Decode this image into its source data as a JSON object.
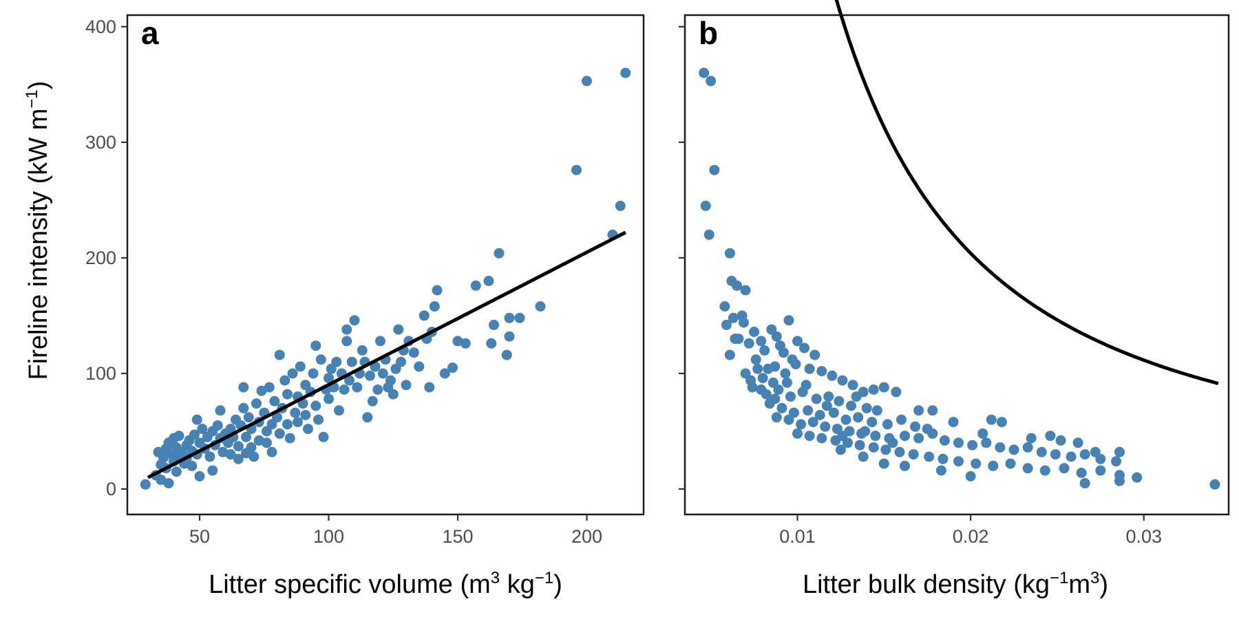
{
  "figure": {
    "y_axis_label": {
      "pre": "Fireline intensity (kW m",
      "sup": "−1",
      "post": ")"
    }
  },
  "chart_data": [
    {
      "type": "scatter",
      "panel": "a",
      "xlabel": {
        "p1": "Litter specific volume (m",
        "s1": "3",
        "p2": " kg",
        "s2": "−1",
        "p3": ")"
      },
      "xlim": [
        22,
        222
      ],
      "ylim": [
        -22,
        410
      ],
      "xticks": [
        50,
        100,
        150,
        200
      ],
      "yticks": [
        0,
        100,
        200,
        300,
        400
      ],
      "point_color": "#4682b4",
      "line_color": "#000000",
      "fit_line": {
        "x": [
          30,
          215
        ],
        "y": [
          10,
          222
        ]
      },
      "points": [
        [
          29,
          4
        ],
        [
          33,
          12
        ],
        [
          34,
          32
        ],
        [
          35,
          21
        ],
        [
          35,
          8
        ],
        [
          36,
          27
        ],
        [
          37,
          35
        ],
        [
          37,
          18
        ],
        [
          38,
          40
        ],
        [
          38,
          5
        ],
        [
          39,
          30
        ],
        [
          40,
          24
        ],
        [
          40,
          44
        ],
        [
          41,
          15
        ],
        [
          41,
          36
        ],
        [
          42,
          28
        ],
        [
          42,
          46
        ],
        [
          43,
          32
        ],
        [
          44,
          22
        ],
        [
          45,
          38
        ],
        [
          45,
          27
        ],
        [
          46,
          42
        ],
        [
          47,
          33
        ],
        [
          47,
          20
        ],
        [
          48,
          47
        ],
        [
          49,
          30
        ],
        [
          49,
          60
        ],
        [
          50,
          11
        ],
        [
          50,
          40
        ],
        [
          51,
          52
        ],
        [
          52,
          35
        ],
        [
          53,
          45
        ],
        [
          54,
          28
        ],
        [
          55,
          50
        ],
        [
          55,
          16
        ],
        [
          56,
          38
        ],
        [
          57,
          55
        ],
        [
          58,
          44
        ],
        [
          58,
          68
        ],
        [
          59,
          32
        ],
        [
          60,
          48
        ],
        [
          61,
          40
        ],
        [
          62,
          52
        ],
        [
          62,
          30
        ],
        [
          63,
          45
        ],
        [
          64,
          60
        ],
        [
          65,
          37
        ],
        [
          65,
          26
        ],
        [
          66,
          55
        ],
        [
          67,
          88
        ],
        [
          67,
          70
        ],
        [
          68,
          45
        ],
        [
          68,
          31
        ],
        [
          69,
          62
        ],
        [
          70,
          52
        ],
        [
          70,
          36
        ],
        [
          71,
          28
        ],
        [
          72,
          74
        ],
        [
          73,
          58
        ],
        [
          73,
          42
        ],
        [
          74,
          85
        ],
        [
          75,
          66
        ],
        [
          76,
          40
        ],
        [
          76,
          50
        ],
        [
          77,
          88
        ],
        [
          78,
          56
        ],
        [
          78,
          32
        ],
        [
          79,
          76
        ],
        [
          80,
          62
        ],
        [
          81,
          48
        ],
        [
          81,
          116
        ],
        [
          82,
          70
        ],
        [
          83,
          94
        ],
        [
          84,
          56
        ],
        [
          84,
          82
        ],
        [
          85,
          44
        ],
        [
          86,
          100
        ],
        [
          87,
          66
        ],
        [
          88,
          80
        ],
        [
          88,
          58
        ],
        [
          89,
          106
        ],
        [
          90,
          74
        ],
        [
          91,
          90
        ],
        [
          91,
          64
        ],
        [
          92,
          52
        ],
        [
          93,
          84
        ],
        [
          94,
          100
        ],
        [
          95,
          72
        ],
        [
          95,
          124
        ],
        [
          96,
          60
        ],
        [
          97,
          112
        ],
        [
          98,
          45
        ],
        [
          99,
          86
        ],
        [
          100,
          96
        ],
        [
          100,
          78
        ],
        [
          101,
          104
        ],
        [
          102,
          88
        ],
        [
          103,
          110
        ],
        [
          104,
          68
        ],
        [
          105,
          100
        ],
        [
          106,
          86
        ],
        [
          107,
          128
        ],
        [
          107,
          138
        ],
        [
          108,
          94
        ],
        [
          109,
          110
        ],
        [
          110,
          146
        ],
        [
          111,
          88
        ],
        [
          112,
          100
        ],
        [
          113,
          120
        ],
        [
          114,
          110
        ],
        [
          115,
          62
        ],
        [
          116,
          98
        ],
        [
          117,
          76
        ],
        [
          118,
          106
        ],
        [
          119,
          86
        ],
        [
          120,
          128
        ],
        [
          121,
          100
        ],
        [
          122,
          112
        ],
        [
          123,
          88
        ],
        [
          124,
          94
        ],
        [
          125,
          82
        ],
        [
          126,
          104
        ],
        [
          127,
          138
        ],
        [
          128,
          110
        ],
        [
          129,
          120
        ],
        [
          130,
          90
        ],
        [
          131,
          128
        ],
        [
          133,
          118
        ],
        [
          135,
          106
        ],
        [
          137,
          150
        ],
        [
          138,
          130
        ],
        [
          139,
          88
        ],
        [
          140,
          136
        ],
        [
          141,
          158
        ],
        [
          142,
          172
        ],
        [
          145,
          100
        ],
        [
          148,
          105
        ],
        [
          150,
          128
        ],
        [
          153,
          126
        ],
        [
          157,
          176
        ],
        [
          162,
          180
        ],
        [
          163,
          126
        ],
        [
          164,
          142
        ],
        [
          166,
          204
        ],
        [
          169,
          116
        ],
        [
          170,
          132
        ],
        [
          170,
          148
        ],
        [
          174,
          148
        ],
        [
          182,
          158
        ],
        [
          196,
          276
        ],
        [
          200,
          353
        ],
        [
          210,
          220
        ],
        [
          213,
          245
        ],
        [
          215,
          360
        ]
      ]
    },
    {
      "type": "scatter",
      "panel": "b",
      "xlabel": {
        "p1": "Litter bulk density (kg",
        "s1": "−1",
        "p2": "m",
        "s2": "3",
        "p3": ")"
      },
      "xlim": [
        0.0035,
        0.0349
      ],
      "ylim": [
        -22,
        410
      ],
      "xticks": [
        0.01,
        0.02,
        0.03
      ],
      "xtick_labels": [
        "0.01",
        "0.02",
        "0.03"
      ],
      "yticks": [
        0,
        100,
        200,
        300,
        400
      ],
      "point_color": "#4682b4",
      "line_color": "#000000",
      "fit_curve": {
        "x_start": 0.0049,
        "x_end": 0.0343,
        "k": 0.6,
        "b": 1.49
      },
      "points": [
        [
          0.0046,
          360
        ],
        [
          0.005,
          353
        ],
        [
          0.0052,
          276
        ],
        [
          0.0047,
          245
        ],
        [
          0.0049,
          220
        ],
        [
          0.0061,
          204
        ],
        [
          0.0062,
          180
        ],
        [
          0.0065,
          176
        ],
        [
          0.0058,
          158
        ],
        [
          0.007,
          172
        ],
        [
          0.0063,
          148
        ],
        [
          0.0059,
          142
        ],
        [
          0.0068,
          150
        ],
        [
          0.0075,
          136
        ],
        [
          0.0066,
          130
        ],
        [
          0.0072,
          126
        ],
        [
          0.0079,
          128
        ],
        [
          0.0061,
          116
        ],
        [
          0.0081,
          120
        ],
        [
          0.0088,
          132
        ],
        [
          0.0095,
          146
        ],
        [
          0.0085,
          138
        ],
        [
          0.0076,
          112
        ],
        [
          0.009,
          124
        ],
        [
          0.01,
          128
        ],
        [
          0.0092,
          118
        ],
        [
          0.0087,
          106
        ],
        [
          0.0097,
          112
        ],
        [
          0.0104,
          122
        ],
        [
          0.011,
          116
        ],
        [
          0.0083,
          104
        ],
        [
          0.007,
          100
        ],
        [
          0.0074,
          88
        ],
        [
          0.008,
          96
        ],
        [
          0.0086,
          92
        ],
        [
          0.0093,
          100
        ],
        [
          0.0099,
          108
        ],
        [
          0.0107,
          104
        ],
        [
          0.0114,
          102
        ],
        [
          0.012,
          98
        ],
        [
          0.0126,
          94
        ],
        [
          0.0132,
          90
        ],
        [
          0.0138,
          84
        ],
        [
          0.0144,
          86
        ],
        [
          0.015,
          88
        ],
        [
          0.0157,
          84
        ],
        [
          0.0082,
          82
        ],
        [
          0.0089,
          86
        ],
        [
          0.0096,
          80
        ],
        [
          0.0103,
          84
        ],
        [
          0.0111,
          78
        ],
        [
          0.0118,
          80
        ],
        [
          0.0124,
          76
        ],
        [
          0.0131,
          72
        ],
        [
          0.014,
          70
        ],
        [
          0.0146,
          68
        ],
        [
          0.0084,
          74
        ],
        [
          0.0091,
          70
        ],
        [
          0.0098,
          66
        ],
        [
          0.0106,
          68
        ],
        [
          0.0113,
          64
        ],
        [
          0.0121,
          66
        ],
        [
          0.0128,
          60
        ],
        [
          0.0135,
          62
        ],
        [
          0.0143,
          58
        ],
        [
          0.0152,
          56
        ],
        [
          0.016,
          60
        ],
        [
          0.0168,
          54
        ],
        [
          0.0175,
          52
        ],
        [
          0.0088,
          62
        ],
        [
          0.0095,
          60
        ],
        [
          0.0102,
          56
        ],
        [
          0.0109,
          58
        ],
        [
          0.0116,
          54
        ],
        [
          0.0123,
          52
        ],
        [
          0.013,
          50
        ],
        [
          0.0137,
          48
        ],
        [
          0.0145,
          46
        ],
        [
          0.0153,
          44
        ],
        [
          0.0162,
          46
        ],
        [
          0.017,
          44
        ],
        [
          0.0178,
          48
        ],
        [
          0.0185,
          42
        ],
        [
          0.0193,
          40
        ],
        [
          0.0201,
          38
        ],
        [
          0.0209,
          40
        ],
        [
          0.0217,
          36
        ],
        [
          0.0225,
          34
        ],
        [
          0.0233,
          36
        ],
        [
          0.0241,
          32
        ],
        [
          0.0249,
          30
        ],
        [
          0.0258,
          28
        ],
        [
          0.0266,
          30
        ],
        [
          0.0275,
          26
        ],
        [
          0.0284,
          24
        ],
        [
          0.01,
          48
        ],
        [
          0.0107,
          46
        ],
        [
          0.0114,
          44
        ],
        [
          0.0122,
          42
        ],
        [
          0.0129,
          40
        ],
        [
          0.0136,
          38
        ],
        [
          0.0144,
          36
        ],
        [
          0.0151,
          34
        ],
        [
          0.0159,
          32
        ],
        [
          0.0167,
          30
        ],
        [
          0.0176,
          28
        ],
        [
          0.0184,
          26
        ],
        [
          0.0193,
          24
        ],
        [
          0.0203,
          22
        ],
        [
          0.0213,
          20
        ],
        [
          0.0223,
          22
        ],
        [
          0.0233,
          18
        ],
        [
          0.0243,
          16
        ],
        [
          0.0254,
          18
        ],
        [
          0.0264,
          14
        ],
        [
          0.0275,
          16
        ],
        [
          0.0286,
          12
        ],
        [
          0.0296,
          10
        ],
        [
          0.0183,
          16
        ],
        [
          0.02,
          11
        ],
        [
          0.0266,
          5
        ],
        [
          0.0286,
          7
        ],
        [
          0.0341,
          4
        ],
        [
          0.0125,
          34
        ],
        [
          0.0138,
          28
        ],
        [
          0.015,
          22
        ],
        [
          0.0162,
          20
        ],
        [
          0.017,
          68
        ],
        [
          0.0178,
          68
        ],
        [
          0.019,
          58
        ],
        [
          0.0207,
          48
        ],
        [
          0.0212,
          60
        ],
        [
          0.0218,
          58
        ],
        [
          0.0235,
          44
        ],
        [
          0.0246,
          46
        ],
        [
          0.0252,
          42
        ],
        [
          0.0262,
          40
        ],
        [
          0.0272,
          32
        ],
        [
          0.0286,
          32
        ],
        [
          0.0155,
          40
        ],
        [
          0.0139,
          50
        ],
        [
          0.0126,
          46
        ],
        [
          0.0117,
          72
        ],
        [
          0.0134,
          80
        ],
        [
          0.0105,
          90
        ],
        [
          0.0094,
          92
        ],
        [
          0.0087,
          78
        ],
        [
          0.0079,
          86
        ],
        [
          0.0073,
          94
        ],
        [
          0.0077,
          104
        ],
        [
          0.0064,
          130
        ],
        [
          0.0069,
          144
        ]
      ]
    }
  ]
}
